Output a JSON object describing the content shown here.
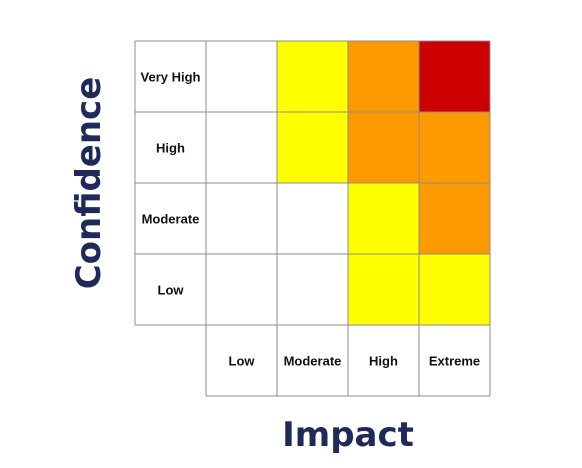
{
  "chart_data": {
    "type": "heatmap",
    "title": "",
    "xlabel": "Impact",
    "ylabel": "Confidence",
    "x_categories": [
      "Low",
      "Moderate",
      "High",
      "Extreme"
    ],
    "y_categories": [
      "Very High",
      "High",
      "Moderate",
      "Low"
    ],
    "cells": [
      [
        "white",
        "yellow",
        "orange",
        "red"
      ],
      [
        "white",
        "yellow",
        "orange",
        "orange"
      ],
      [
        "white",
        "white",
        "yellow",
        "orange"
      ],
      [
        "white",
        "white",
        "yellow",
        "yellow"
      ]
    ],
    "colors": {
      "white": "#ffffff",
      "yellow": "#ffff00",
      "orange": "#ff9900",
      "red": "#cc0000",
      "grid": "#8c8c8c",
      "axis_title": "#1f2a5a"
    },
    "grid": true
  }
}
